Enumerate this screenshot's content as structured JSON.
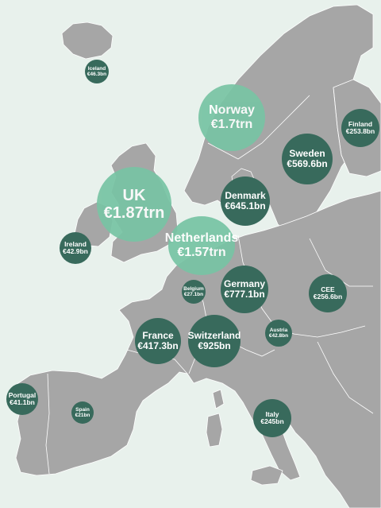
{
  "colors": {
    "sea": "#e8f1ec",
    "land": "#a6a6a6",
    "borders": "#ffffff",
    "bubble_dark": "#386a5c",
    "bubble_light": "#78c4a4",
    "text": "#ffffff"
  },
  "regions": [
    {
      "id": "iceland",
      "name": "Iceland",
      "value": "€46.3bn"
    },
    {
      "id": "norway",
      "name": "Norway",
      "value": "€1.7trn"
    },
    {
      "id": "finland",
      "name": "Finland",
      "value": "€253.8bn"
    },
    {
      "id": "sweden",
      "name": "Sweden",
      "value": "€569.6bn"
    },
    {
      "id": "uk",
      "name": "UK",
      "value": "€1.87trn"
    },
    {
      "id": "denmark",
      "name": "Denmark",
      "value": "€645.1bn"
    },
    {
      "id": "ireland",
      "name": "Ireland",
      "value": "€42.9bn"
    },
    {
      "id": "netherlands",
      "name": "Netherlands",
      "value": "€1.57trn"
    },
    {
      "id": "belgium",
      "name": "Belgium",
      "value": "€27.1bn"
    },
    {
      "id": "germany",
      "name": "Germany",
      "value": "€777.1bn"
    },
    {
      "id": "cee",
      "name": "CEE",
      "value": "€256.6bn"
    },
    {
      "id": "france",
      "name": "France",
      "value": "€417.3bn"
    },
    {
      "id": "switzerland",
      "name": "Switzerland",
      "value": "€925bn"
    },
    {
      "id": "austria",
      "name": "Austria",
      "value": "€42.8bn"
    },
    {
      "id": "portugal",
      "name": "Portugal",
      "value": "€41.1bn"
    },
    {
      "id": "spain",
      "name": "Spain",
      "value": "€21bn"
    },
    {
      "id": "italy",
      "name": "Italy",
      "value": "€245bn"
    }
  ]
}
